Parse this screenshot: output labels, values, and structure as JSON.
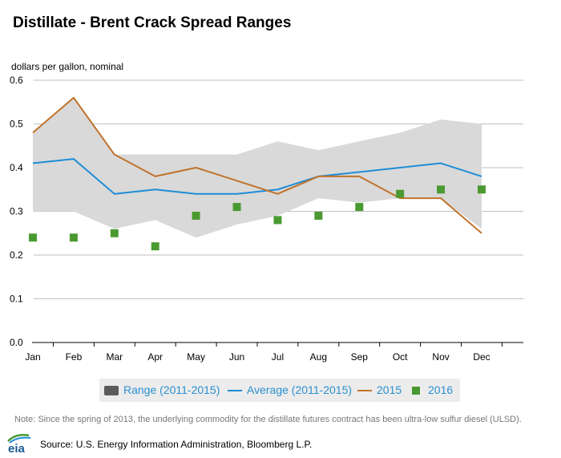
{
  "chart_data": {
    "type": "line",
    "title": "Distillate - Brent Crack Spread Ranges",
    "ylabel": "dollars per gallon, nominal",
    "xlabel": "",
    "categories": [
      "Jan",
      "Feb",
      "Mar",
      "Apr",
      "May",
      "Jun",
      "Jul",
      "Aug",
      "Sep",
      "Oct",
      "Nov",
      "Dec"
    ],
    "ylim": [
      0,
      0.6
    ],
    "yticks": [
      "0.0",
      "0.1",
      "0.2",
      "0.3",
      "0.4",
      "0.5",
      "0.6"
    ],
    "grid": true,
    "legend_position": "bottom",
    "range": {
      "name": "Range (2011-2015)",
      "low": [
        0.3,
        0.3,
        0.26,
        0.28,
        0.24,
        0.27,
        0.29,
        0.33,
        0.32,
        0.33,
        0.33,
        0.26
      ],
      "high": [
        0.48,
        0.56,
        0.43,
        0.43,
        0.43,
        0.43,
        0.46,
        0.44,
        0.46,
        0.48,
        0.51,
        0.5
      ]
    },
    "series": [
      {
        "name": "Average (2011-2015)",
        "type": "line",
        "color": "#1f8dd6",
        "values": [
          0.41,
          0.42,
          0.34,
          0.35,
          0.34,
          0.34,
          0.35,
          0.38,
          0.39,
          0.4,
          0.41,
          0.38
        ]
      },
      {
        "name": "2015",
        "type": "line",
        "color": "#c0722b",
        "values": [
          0.48,
          0.56,
          0.43,
          0.38,
          0.4,
          0.37,
          0.34,
          0.38,
          0.38,
          0.33,
          0.33,
          0.25
        ]
      },
      {
        "name": "2016",
        "type": "scatter",
        "color": "#4b9a31",
        "values": [
          0.24,
          0.24,
          0.25,
          0.22,
          0.29,
          0.31,
          0.28,
          0.29,
          0.31,
          0.34,
          0.35,
          0.35
        ]
      }
    ],
    "colors": {
      "range_fill": "#d9d9d9",
      "range_legend": "#5b5b5b",
      "grid": "#bfbfbf"
    }
  },
  "note": "Note: Since the spring of 2013, the underlying commodity for the distillate futures contract has been ultra-low sulfur diesel (ULSD).",
  "source": "Source: U.S. Energy Information Administration, Bloomberg L.P.",
  "logo_text": "eia",
  "icons": {
    "logo": "eia-logo-icon"
  }
}
